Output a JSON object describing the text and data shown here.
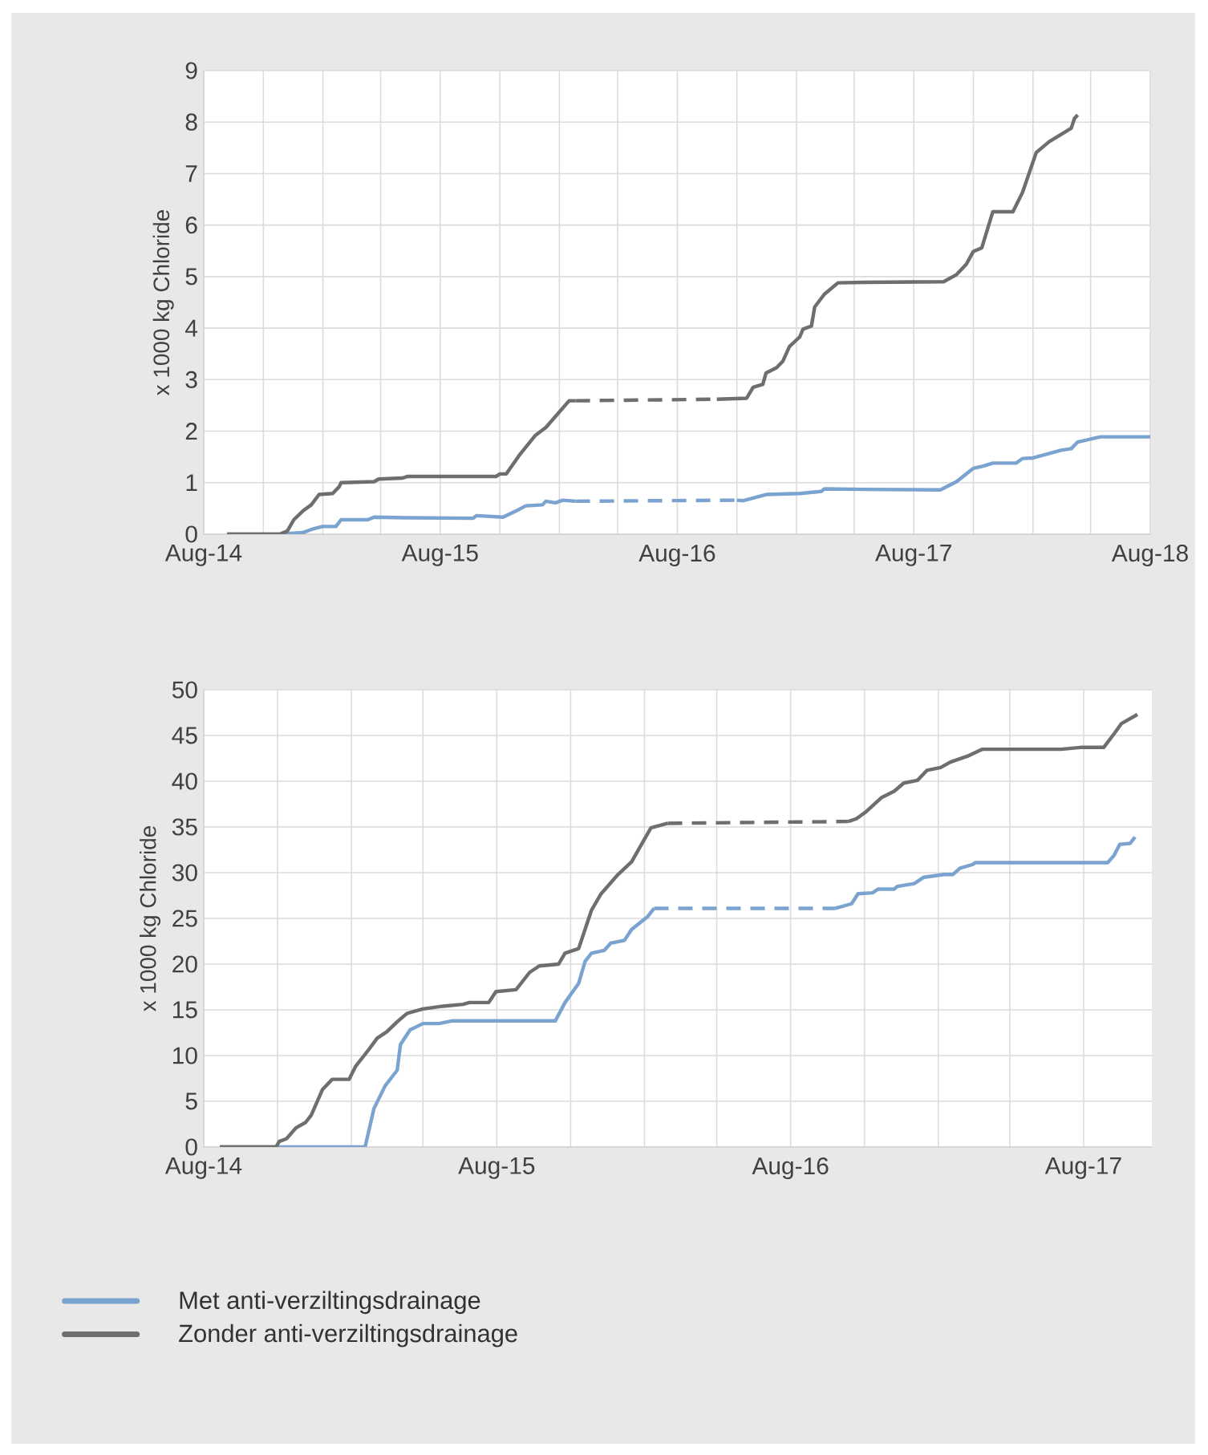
{
  "chart_data": [
    {
      "type": "line",
      "ylabel": "x 1000 kg Chloride",
      "xlim": [
        "2014-08",
        "2018-08"
      ],
      "ylim": [
        0,
        9
      ],
      "yticks": [
        0,
        1,
        2,
        3,
        4,
        5,
        6,
        7,
        8,
        9
      ],
      "grid": true,
      "xticks": [
        {
          "value": "2014-08",
          "label": "Aug-14"
        },
        {
          "value": "2014-11",
          "label": null
        },
        {
          "value": "2015-02",
          "label": null
        },
        {
          "value": "2015-05",
          "label": null
        },
        {
          "value": "2015-08",
          "label": "Aug-15"
        },
        {
          "value": "2015-11",
          "label": null
        },
        {
          "value": "2016-02",
          "label": null
        },
        {
          "value": "2016-05",
          "label": null
        },
        {
          "value": "2016-08",
          "label": "Aug-16"
        },
        {
          "value": "2016-11",
          "label": null
        },
        {
          "value": "2017-02",
          "label": null
        },
        {
          "value": "2017-05",
          "label": null
        },
        {
          "value": "2017-08",
          "label": "Aug-17"
        },
        {
          "value": "2017-11",
          "label": null
        },
        {
          "value": "2018-02",
          "label": null
        },
        {
          "value": "2018-05",
          "label": null
        },
        {
          "value": "2018-08",
          "label": "Aug-18"
        }
      ],
      "series": [
        {
          "color": "#7aa3cf",
          "x": [
            "2014-09-06",
            "2014-11-26",
            "2015-01-01",
            "2015-01-16",
            "2015-01-31",
            "2015-02-21",
            "2015-03-01",
            "2015-04-11",
            "2015-04-21",
            "2015-06-06",
            "2015-09-21",
            "2015-09-26",
            "2015-11-06",
            "2015-11-26",
            "2015-12-11",
            "2016-01-06",
            "2016-01-11",
            "2016-01-26",
            "2016-02-06",
            "2016-02-26"
          ],
          "values": [
            0,
            0,
            0.03,
            0.1,
            0.15,
            0.15,
            0.28,
            0.28,
            0.33,
            0.32,
            0.31,
            0.36,
            0.33,
            0.45,
            0.55,
            0.57,
            0.64,
            0.61,
            0.66,
            0.64
          ]
        },
        {
          "color": "#7aa3cf",
          "line_style": "dashed",
          "x": [
            "2016-02-26",
            "2016-11-01"
          ],
          "values": [
            0.64,
            0.66
          ]
        },
        {
          "color": "#7aa3cf",
          "x": [
            "2016-11-01",
            "2016-11-11",
            "2016-12-16",
            "2017-02-06",
            "2017-03-11",
            "2017-03-16",
            "2017-05-16",
            "2017-09-11",
            "2017-10-06",
            "2017-11-01",
            "2017-11-16",
            "2017-12-01",
            "2018-01-06",
            "2018-01-16",
            "2018-02-01",
            "2018-03-16",
            "2018-04-01",
            "2018-04-11",
            "2018-05-16",
            "2018-08-01"
          ],
          "values": [
            0.66,
            0.65,
            0.77,
            0.79,
            0.83,
            0.88,
            0.87,
            0.86,
            1.02,
            1.28,
            1.32,
            1.38,
            1.38,
            1.47,
            1.48,
            1.63,
            1.66,
            1.79,
            1.89,
            1.89
          ]
        },
        {
          "color": "#6e6e6e",
          "x": [
            "2014-09-06",
            "2014-11-26",
            "2014-12-08",
            "2014-12-18",
            "2015-01-01",
            "2015-01-14",
            "2015-01-26",
            "2015-02-16",
            "2015-02-26",
            "2015-03-01",
            "2015-04-21",
            "2015-04-28",
            "2015-06-04",
            "2015-06-11",
            "2015-10-26",
            "2015-11-01",
            "2015-11-11",
            "2015-12-01",
            "2015-12-26",
            "2016-01-11",
            "2016-02-16",
            "2016-02-26"
          ],
          "values": [
            0,
            0,
            0.06,
            0.28,
            0.45,
            0.57,
            0.77,
            0.79,
            0.92,
            1.0,
            1.02,
            1.07,
            1.09,
            1.12,
            1.12,
            1.17,
            1.17,
            1.53,
            1.92,
            2.07,
            2.59,
            2.59
          ]
        },
        {
          "color": "#6e6e6e",
          "line_style": "dashed",
          "x": [
            "2016-02-26",
            "2016-10-01"
          ],
          "values": [
            2.59,
            2.62
          ]
        },
        {
          "color": "#6e6e6e",
          "x": [
            "2016-10-01",
            "2016-11-16",
            "2016-11-26",
            "2016-12-11",
            "2016-12-16",
            "2017-01-01",
            "2017-01-11",
            "2017-01-21",
            "2017-02-06",
            "2017-02-11",
            "2017-02-24",
            "2017-03-01",
            "2017-03-16",
            "2017-04-06",
            "2017-05-16",
            "2017-09-16",
            "2017-10-06",
            "2017-10-21",
            "2017-11-01",
            "2017-11-14",
            "2017-12-01",
            "2018-01-01",
            "2018-01-16",
            "2018-02-06",
            "2018-02-26",
            "2018-04-01",
            "2018-04-06",
            "2018-04-11"
          ],
          "values": [
            2.62,
            2.64,
            2.85,
            2.91,
            3.13,
            3.23,
            3.36,
            3.64,
            3.83,
            3.98,
            4.04,
            4.41,
            4.66,
            4.88,
            4.89,
            4.9,
            5.04,
            5.24,
            5.49,
            5.56,
            6.26,
            6.26,
            6.64,
            7.41,
            7.62,
            7.88,
            8.07,
            8.14
          ]
        }
      ]
    },
    {
      "type": "line",
      "ylabel": "x 1000 kg Chloride",
      "xlim": [
        "2014-08",
        "2017-10-25"
      ],
      "ylim": [
        0,
        50
      ],
      "yticks": [
        0,
        5,
        10,
        15,
        20,
        25,
        30,
        35,
        40,
        45,
        50
      ],
      "grid": true,
      "legend": "bottom",
      "xticks": [
        {
          "value": "2014-08",
          "label": "Aug-14"
        },
        {
          "value": "2014-11",
          "label": null
        },
        {
          "value": "2015-02",
          "label": null
        },
        {
          "value": "2015-05",
          "label": null
        },
        {
          "value": "2015-08",
          "label": "Aug-15"
        },
        {
          "value": "2015-11",
          "label": null
        },
        {
          "value": "2016-02",
          "label": null
        },
        {
          "value": "2016-05",
          "label": null
        },
        {
          "value": "2016-08",
          "label": "Aug-16"
        },
        {
          "value": "2016-11",
          "label": null
        },
        {
          "value": "2017-02",
          "label": null
        },
        {
          "value": "2017-05",
          "label": null
        },
        {
          "value": "2017-08",
          "label": "Aug-17"
        }
      ],
      "series": [
        {
          "name": "Met anti-verziltingsdrainage",
          "color": "#7aa3cf",
          "x": [
            "2014-08-21",
            "2015-02-18",
            "2015-03-01",
            "2015-03-15",
            "2015-03-30",
            "2015-04-03",
            "2015-04-15",
            "2015-05-01",
            "2015-05-21",
            "2015-06-07",
            "2015-10-13",
            "2015-10-25",
            "2015-11-11",
            "2015-11-19",
            "2015-11-27",
            "2015-12-13",
            "2015-12-21",
            "2016-01-07",
            "2016-01-16",
            "2016-02-05",
            "2016-02-13"
          ],
          "values": [
            0,
            0,
            4.2,
            6.7,
            8.4,
            11.2,
            12.8,
            13.5,
            13.5,
            13.8,
            13.8,
            15.8,
            17.9,
            20.3,
            21.2,
            21.5,
            22.3,
            22.6,
            23.8,
            25.2,
            26.1
          ]
        },
        {
          "color": "#7aa3cf",
          "line_style": "dashed",
          "x": [
            "2016-02-13",
            "2016-09-26"
          ],
          "values": [
            26.1,
            26.1
          ]
        },
        {
          "color": "#7aa3cf",
          "x": [
            "2016-09-26",
            "2016-10-16",
            "2016-10-24",
            "2016-11-11",
            "2016-11-18",
            "2016-12-08",
            "2016-12-12",
            "2017-01-02",
            "2017-01-14",
            "2017-02-08",
            "2017-02-19",
            "2017-02-28",
            "2017-03-16",
            "2017-03-19",
            "2017-07-04",
            "2017-08-31",
            "2017-09-08",
            "2017-09-15",
            "2017-09-28",
            "2017-10-04"
          ],
          "values": [
            26.1,
            26.6,
            27.7,
            27.8,
            28.2,
            28.2,
            28.5,
            28.8,
            29.5,
            29.8,
            29.8,
            30.5,
            30.9,
            31.1,
            31.1,
            31.1,
            31.9,
            33.1,
            33.2,
            33.9
          ]
        },
        {
          "name": "Zonder anti-verziltingsdrainage",
          "color": "#6e6e6e",
          "x": [
            "2014-08-21",
            "2014-10-30",
            "2014-11-03",
            "2014-11-12",
            "2014-11-24",
            "2014-12-06",
            "2014-12-13",
            "2014-12-27",
            "2015-01-08",
            "2015-01-29",
            "2015-02-06",
            "2015-02-23",
            "2015-03-05",
            "2015-03-17",
            "2015-03-30",
            "2015-04-11",
            "2015-05-01",
            "2015-05-26",
            "2015-06-20",
            "2015-06-28",
            "2015-07-22",
            "2015-07-31",
            "2015-08-25",
            "2015-09-11",
            "2015-09-23",
            "2015-10-17",
            "2015-10-25",
            "2015-11-11",
            "2015-11-27",
            "2015-12-09",
            "2015-12-30",
            "2016-01-16",
            "2016-02-09",
            "2016-03-01"
          ],
          "values": [
            0,
            0,
            0.6,
            0.9,
            2.1,
            2.7,
            3.5,
            6.3,
            7.4,
            7.4,
            8.8,
            10.7,
            11.9,
            12.6,
            13.7,
            14.6,
            15.1,
            15.4,
            15.6,
            15.8,
            15.8,
            17.0,
            17.2,
            19.1,
            19.8,
            20.0,
            21.2,
            21.7,
            25.9,
            27.7,
            29.8,
            31.2,
            34.9,
            35.4
          ]
        },
        {
          "color": "#6e6e6e",
          "line_style": "dashed",
          "x": [
            "2016-03-01",
            "2016-10-12"
          ],
          "values": [
            35.4,
            35.6
          ]
        },
        {
          "color": "#6e6e6e",
          "x": [
            "2016-10-12",
            "2016-10-22",
            "2016-11-02",
            "2016-11-22",
            "2016-12-08",
            "2016-12-20",
            "2017-01-06",
            "2017-01-18",
            "2017-02-04",
            "2017-02-16",
            "2017-03-11",
            "2017-03-28",
            "2017-07-04",
            "2017-07-28",
            "2017-08-26",
            "2017-09-08",
            "2017-09-17",
            "2017-09-21",
            "2017-10-07"
          ],
          "values": [
            35.6,
            35.9,
            36.6,
            38.2,
            38.9,
            39.8,
            40.1,
            41.2,
            41.5,
            42.1,
            42.8,
            43.5,
            43.5,
            43.7,
            43.7,
            45.2,
            46.3,
            46.5,
            47.3
          ]
        }
      ]
    }
  ]
}
